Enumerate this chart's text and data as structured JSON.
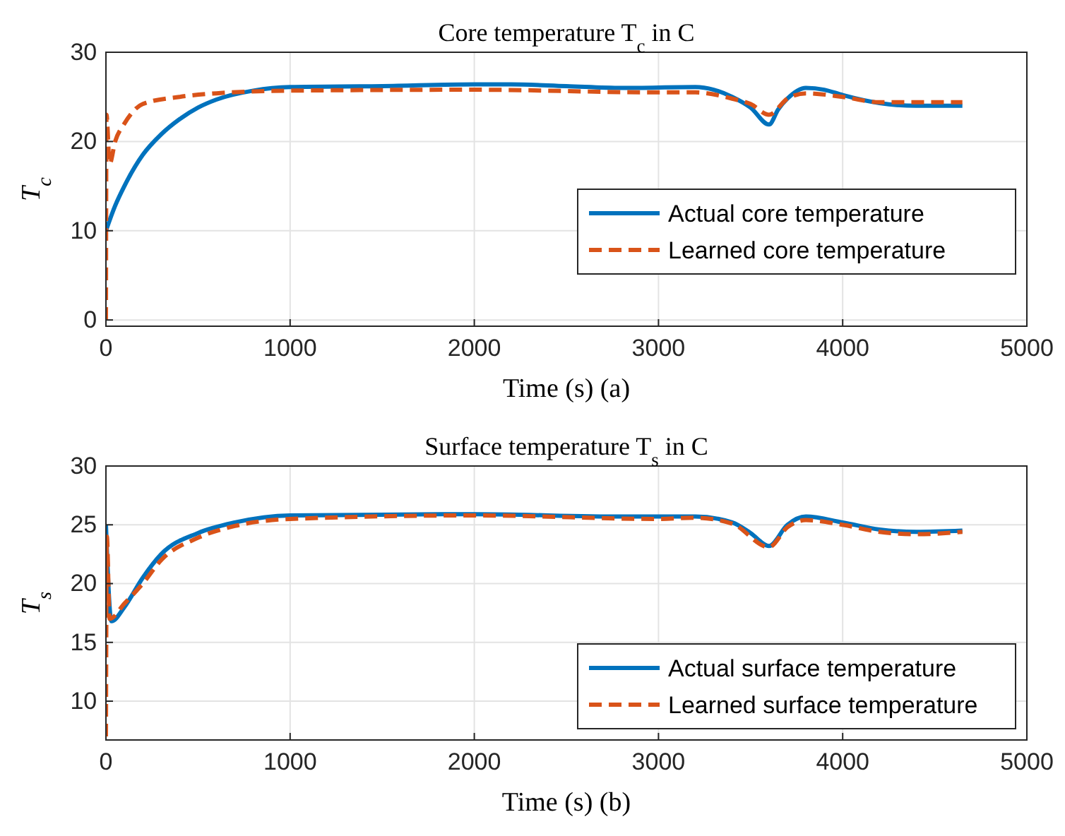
{
  "chart_data": [
    {
      "type": "line",
      "title": "Core temperature T$_{c}$ in C",
      "xlabel": "Time (s) (a)",
      "ylabel": "T$_{c}$",
      "xlim": [
        0,
        5000
      ],
      "xticks": [
        0,
        1000,
        2000,
        3000,
        4000,
        5000
      ],
      "ylim": [
        -0.7,
        30
      ],
      "yticks": [
        0,
        10,
        20,
        30
      ],
      "grid": true,
      "legend": "right",
      "series": [
        {
          "name": "Actual core temperature",
          "color": "#0072bd",
          "line_style": "solid",
          "x": [
            0,
            50,
            100,
            200,
            300,
            400,
            500,
            600,
            800,
            1000,
            1500,
            2000,
            2200,
            2500,
            2800,
            3200,
            3300,
            3400,
            3500,
            3600,
            3650,
            3700,
            3800,
            3900,
            4000,
            4200,
            4400,
            4650
          ],
          "values": [
            10,
            12.8,
            15,
            18.5,
            20.8,
            22.5,
            23.8,
            24.7,
            25.7,
            26.1,
            26.2,
            26.4,
            26.4,
            26.2,
            26,
            26.1,
            25.8,
            25,
            23.8,
            21.9,
            23.6,
            24.8,
            26,
            25.8,
            25.2,
            24.3,
            24,
            24
          ]
        },
        {
          "name": "Learned core temperature",
          "color": "#d95319",
          "line_style": "dashed",
          "x": [
            0,
            3,
            20,
            50,
            100,
            200,
            400,
            600,
            1000,
            2000,
            3000,
            3200,
            3400,
            3500,
            3600,
            3700,
            3800,
            4000,
            4200,
            4650
          ],
          "values": [
            0,
            23,
            17.5,
            20,
            22,
            24.2,
            25,
            25.4,
            25.7,
            25.8,
            25.5,
            25.5,
            24.8,
            24.2,
            23,
            24.8,
            25.4,
            25,
            24.4,
            24.4
          ]
        }
      ]
    },
    {
      "type": "line",
      "title": "Surface temperature T$_{s}$ in C",
      "xlabel": "Time (s) (b)",
      "ylabel": "T$_{s}$",
      "xlim": [
        0,
        5000
      ],
      "xticks": [
        0,
        1000,
        2000,
        3000,
        4000,
        5000
      ],
      "ylim": [
        6.7,
        30
      ],
      "yticks": [
        10,
        15,
        20,
        25,
        30
      ],
      "grid": true,
      "legend": "bottom right",
      "series": [
        {
          "name": "Actual surface temperature",
          "color": "#0072bd",
          "line_style": "solid",
          "x": [
            0,
            30,
            100,
            200,
            300,
            500,
            700,
            1000,
            2000,
            2800,
            3200,
            3400,
            3500,
            3600,
            3700,
            3800,
            4000,
            4200,
            4400,
            4650
          ],
          "values": [
            25,
            16.8,
            18,
            20.5,
            22.5,
            24.3,
            25.2,
            25.8,
            25.9,
            25.7,
            25.7,
            25.2,
            24.3,
            23.2,
            25,
            25.7,
            25.2,
            24.6,
            24.4,
            24.5
          ]
        },
        {
          "name": "Learned surface temperature",
          "color": "#d95319",
          "line_style": "dashed",
          "x": [
            0,
            5,
            20,
            100,
            200,
            300,
            500,
            700,
            1000,
            2000,
            3000,
            3200,
            3400,
            3600,
            3700,
            3800,
            4000,
            4200,
            4400,
            4650
          ],
          "values": [
            7,
            24,
            17,
            18.3,
            20,
            22,
            23.9,
            24.9,
            25.5,
            25.8,
            25.5,
            25.6,
            25.1,
            23.1,
            24.8,
            25.4,
            25,
            24.4,
            24.2,
            24.4
          ]
        }
      ]
    }
  ]
}
